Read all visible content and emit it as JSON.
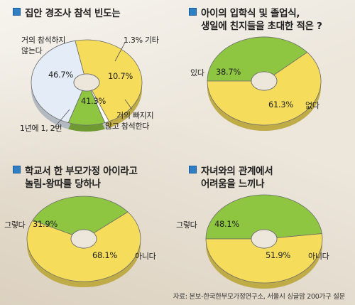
{
  "source": "자료: 본보-한국한부모가정연구소, 서울시 싱글맘 200가구 설문",
  "colors": {
    "yellow": "#f6dc5b",
    "green": "#8ec641",
    "lightblue": "#e4edf7",
    "bullet": "#2f7fc4"
  },
  "chart_data": [
    {
      "type": "pie",
      "title": "집안 경조사 참석 빈도는",
      "categories": [
        "거의 참석하지 않는다",
        "1.3% 기타",
        "거의 빠지지 않고 참석한다",
        "1년에 1, 2번"
      ],
      "values": [
        46.7,
        1.3,
        10.7,
        41.3
      ],
      "value_labels": [
        "46.7%",
        "",
        "10.7%",
        "41.3%"
      ],
      "colors": [
        "#f6dc5b",
        "#ffffff",
        "#8ec641",
        "#e4edf7"
      ]
    },
    {
      "type": "pie",
      "title": "아이의 입학식 및 졸업식, 생일에 친지들을 초대한 적은 ?",
      "categories": [
        "있다",
        "없다"
      ],
      "values": [
        38.7,
        61.3
      ],
      "value_labels": [
        "38.7%",
        "61.3%"
      ],
      "colors": [
        "#8ec641",
        "#f6dc5b"
      ]
    },
    {
      "type": "pie",
      "title": "학교서 한 부모가정 아이라고 놀림-왕따를 당하나",
      "categories": [
        "그렇다",
        "아니다"
      ],
      "values": [
        31.9,
        68.1
      ],
      "value_labels": [
        "31.9%",
        "68.1%"
      ],
      "colors": [
        "#8ec641",
        "#f6dc5b"
      ]
    },
    {
      "type": "pie",
      "title": "자녀와의 관계에서 어려움을 느끼나",
      "categories": [
        "그렇다",
        "아니다"
      ],
      "values": [
        48.1,
        51.9
      ],
      "value_labels": [
        "48.1%",
        "51.9%"
      ],
      "colors": [
        "#8ec641",
        "#f6dc5b"
      ]
    }
  ],
  "panels": [
    {
      "title_line1": "집안 경조사 참석 빈도는",
      "title_line2": "",
      "labels": [
        "거의 참석하지",
        "않는다",
        "1.3% 기타",
        "거의 빠지지",
        "않고 참석한다",
        "1년에 1, 2번"
      ]
    },
    {
      "title_line1": "아이의 입학식 및 졸업식,",
      "title_line2": "생일에 친지들을 초대한 적은 ?",
      "labels": [
        "있다",
        "없다"
      ]
    },
    {
      "title_line1": "학교서 한 부모가정 아이라고",
      "title_line2": "놀림-왕따를 당하나",
      "labels": [
        "그렇다",
        "아니다"
      ]
    },
    {
      "title_line1": "자녀와의 관계에서",
      "title_line2": "어려움을 느끼나",
      "labels": [
        "그렇다",
        "아니다"
      ]
    }
  ]
}
